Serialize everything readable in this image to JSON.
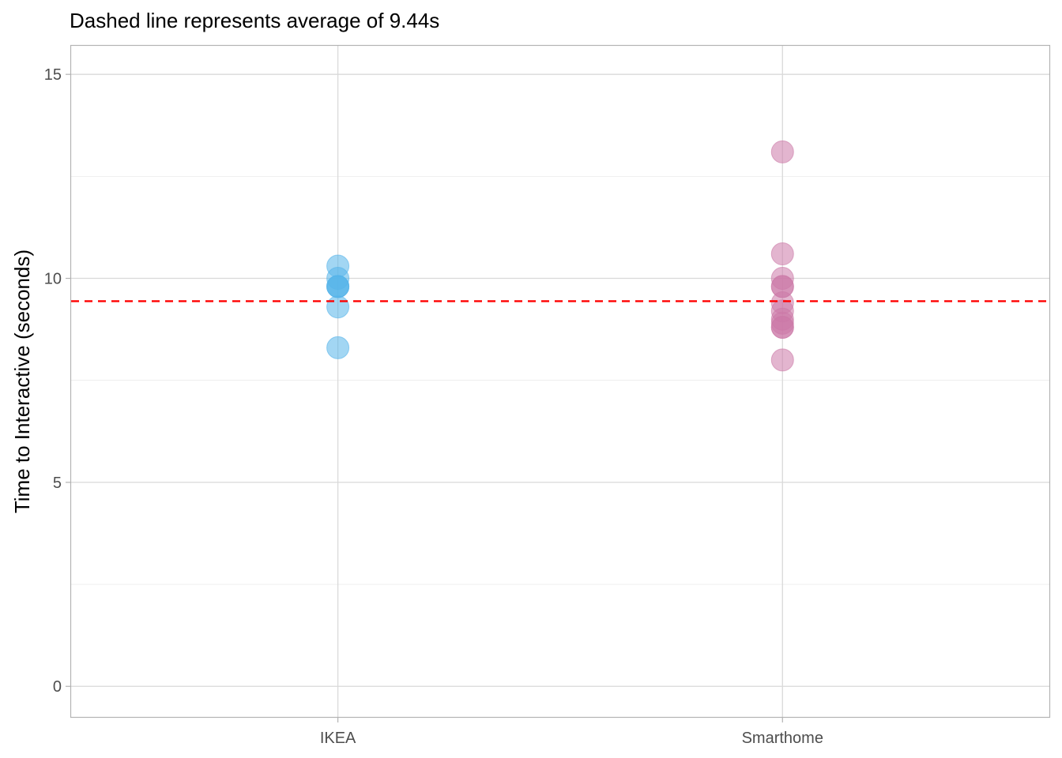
{
  "chart_data": {
    "type": "scatter",
    "title": "Dashed line represents average of 9.44s",
    "xlabel": "",
    "ylabel": "Time to Interactive (seconds)",
    "categories": [
      "IKEA",
      "Smarthome"
    ],
    "ylim": [
      -0.75,
      15.7
    ],
    "yticks": [
      0,
      5,
      10,
      15
    ],
    "grid": true,
    "reference_line": {
      "value": 9.44,
      "style": "dashed",
      "color": "#ff0000"
    },
    "series": [
      {
        "category": "IKEA",
        "color": "#56b4e9",
        "values": [
          10.3,
          10.0,
          9.8,
          9.8,
          9.8,
          9.3,
          8.3
        ]
      },
      {
        "category": "Smarthome",
        "color": "#cc79a7",
        "values": [
          13.1,
          10.6,
          10.0,
          9.8,
          9.8,
          9.4,
          9.2,
          9.0,
          8.9,
          8.8,
          8.8,
          8.0
        ]
      }
    ]
  }
}
